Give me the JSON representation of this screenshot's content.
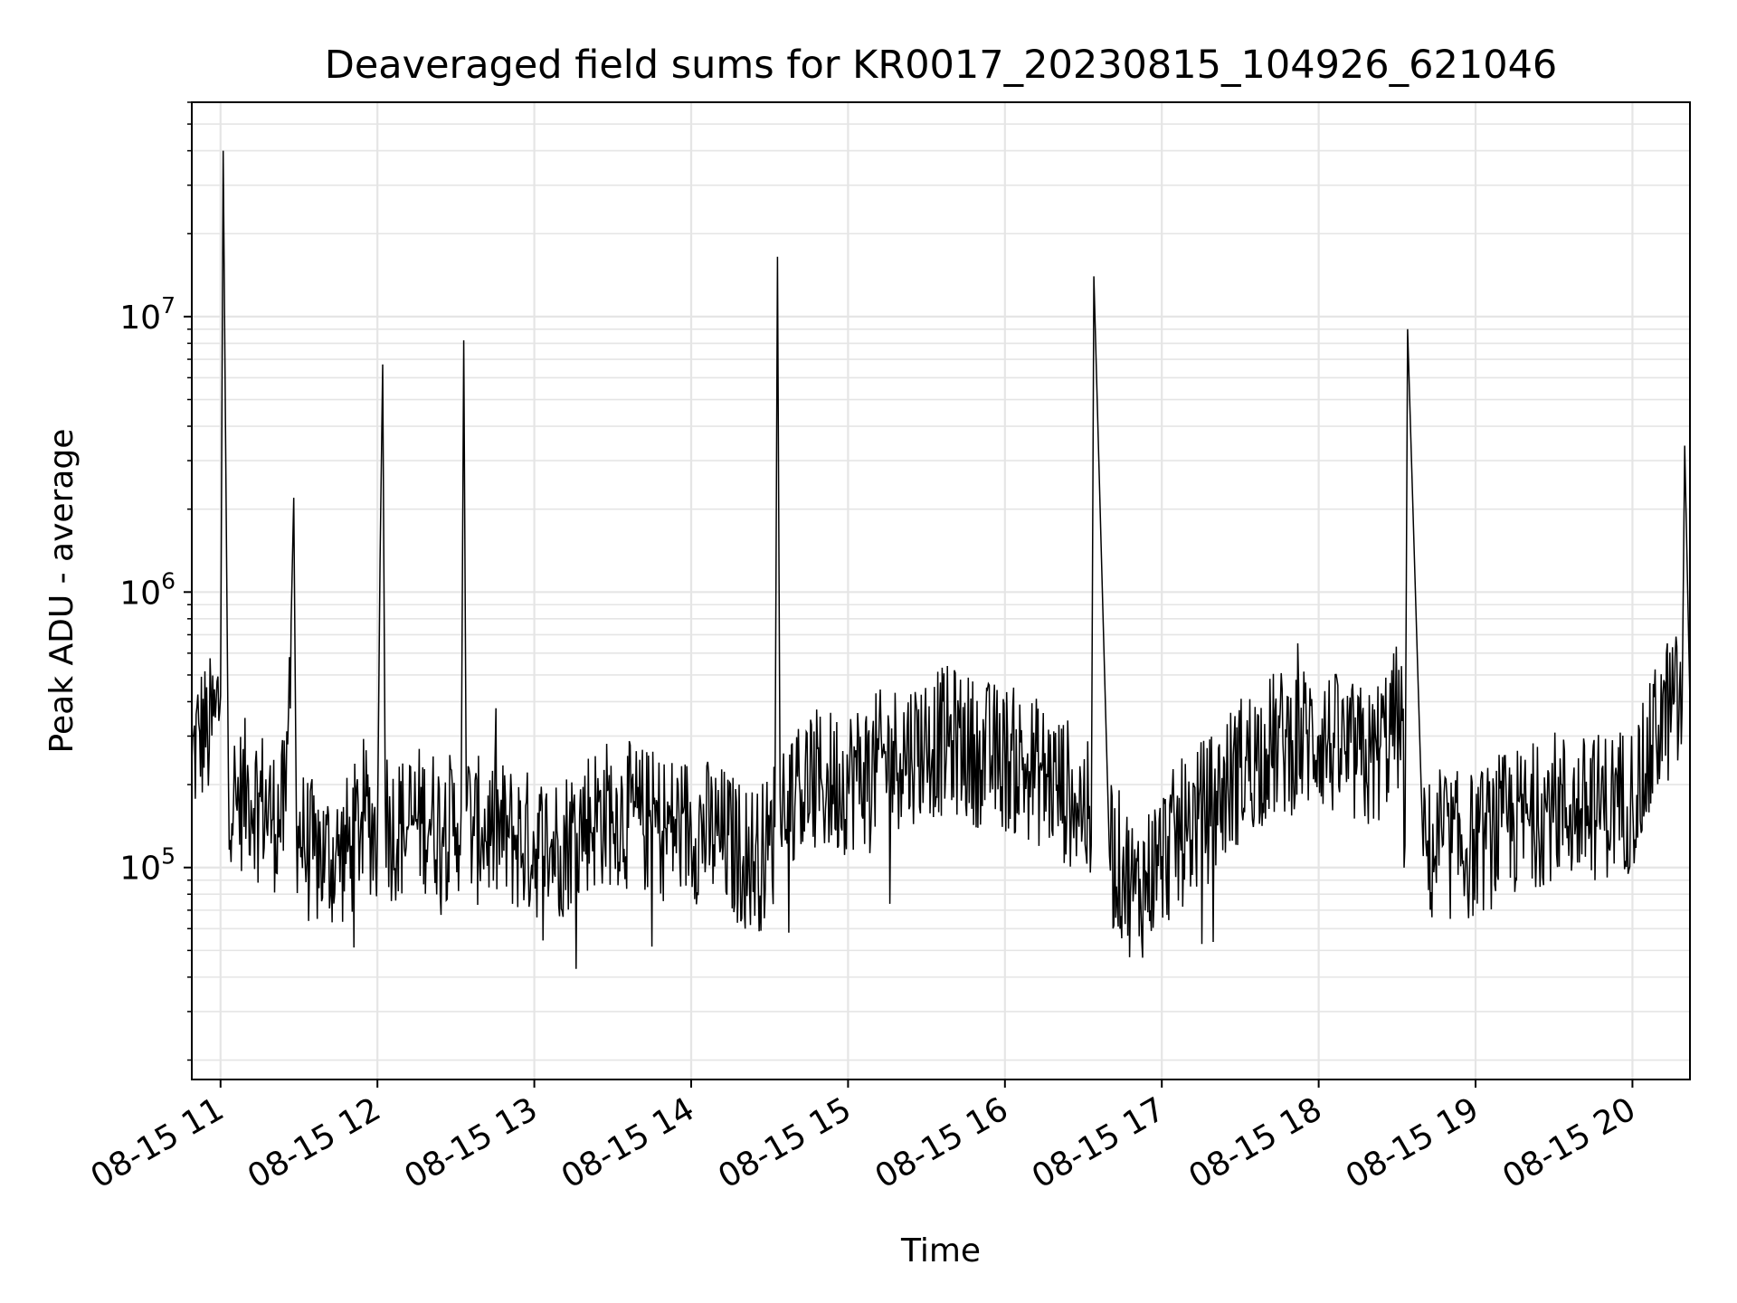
{
  "chart_data": {
    "type": "line",
    "title": "Deaveraged field sums for KR0017_20230815_104926_621046",
    "xlabel": "Time",
    "ylabel": "Peak ADU - average",
    "yscale": "log",
    "ylim": [
      17000,
      60000000
    ],
    "xlim": [
      "2023-08-15 10:49",
      "2023-08-15 20:22"
    ],
    "grid": true,
    "line_color": "#000000",
    "grid_color": "#e5e5e5",
    "x_ticks": [
      {
        "value": "2023-08-15 11:00",
        "label": "08-15 11"
      },
      {
        "value": "2023-08-15 12:00",
        "label": "08-15 12"
      },
      {
        "value": "2023-08-15 13:00",
        "label": "08-15 13"
      },
      {
        "value": "2023-08-15 14:00",
        "label": "08-15 14"
      },
      {
        "value": "2023-08-15 15:00",
        "label": "08-15 15"
      },
      {
        "value": "2023-08-15 16:00",
        "label": "08-15 16"
      },
      {
        "value": "2023-08-15 17:00",
        "label": "08-15 17"
      },
      {
        "value": "2023-08-15 18:00",
        "label": "08-15 18"
      },
      {
        "value": "2023-08-15 19:00",
        "label": "08-15 19"
      },
      {
        "value": "2023-08-15 20:00",
        "label": "08-15 20"
      }
    ],
    "y_ticks": [
      {
        "value": 100000,
        "base": "10",
        "exp": "5"
      },
      {
        "value": 1000000,
        "base": "10",
        "exp": "6"
      },
      {
        "value": 10000000,
        "base": "10",
        "exp": "7"
      }
    ],
    "series": [
      {
        "x": [
          "2023-08-15 10:49",
          "2023-08-15 10:52",
          "2023-08-15 10:55",
          "2023-08-15 10:58",
          "2023-08-15 11:00",
          "2023-08-15 11:01",
          "2023-08-15 11:03",
          "2023-08-15 11:06",
          "2023-08-15 11:10",
          "2023-08-15 11:15",
          "2023-08-15 11:20",
          "2023-08-15 11:25",
          "2023-08-15 11:27",
          "2023-08-15 11:28",
          "2023-08-15 11:29",
          "2023-08-15 11:32",
          "2023-08-15 11:36",
          "2023-08-15 11:40",
          "2023-08-15 11:45",
          "2023-08-15 11:50",
          "2023-08-15 11:55",
          "2023-08-15 12:00",
          "2023-08-15 12:01",
          "2023-08-15 12:02",
          "2023-08-15 12:03",
          "2023-08-15 12:05",
          "2023-08-15 12:10",
          "2023-08-15 12:15",
          "2023-08-15 12:20",
          "2023-08-15 12:25",
          "2023-08-15 12:30",
          "2023-08-15 12:32",
          "2023-08-15 12:33",
          "2023-08-15 12:34",
          "2023-08-15 12:37",
          "2023-08-15 12:40",
          "2023-08-15 12:50",
          "2023-08-15 13:00",
          "2023-08-15 13:10",
          "2023-08-15 13:20",
          "2023-08-15 13:30",
          "2023-08-15 13:40",
          "2023-08-15 13:50",
          "2023-08-15 14:00",
          "2023-08-15 14:10",
          "2023-08-15 14:20",
          "2023-08-15 14:27",
          "2023-08-15 14:30",
          "2023-08-15 14:32",
          "2023-08-15 14:33",
          "2023-08-15 14:34",
          "2023-08-15 14:37",
          "2023-08-15 14:40",
          "2023-08-15 14:50",
          "2023-08-15 15:00",
          "2023-08-15 15:10",
          "2023-08-15 15:20",
          "2023-08-15 15:30",
          "2023-08-15 15:40",
          "2023-08-15 15:50",
          "2023-08-15 16:00",
          "2023-08-15 16:10",
          "2023-08-15 16:20",
          "2023-08-15 16:30",
          "2023-08-15 16:32",
          "2023-08-15 16:33",
          "2023-08-15 16:34",
          "2023-08-15 16:40",
          "2023-08-15 16:45",
          "2023-08-15 16:50",
          "2023-08-15 17:00",
          "2023-08-15 17:10",
          "2023-08-15 17:20",
          "2023-08-15 17:30",
          "2023-08-15 17:40",
          "2023-08-15 17:50",
          "2023-08-15 18:00",
          "2023-08-15 18:10",
          "2023-08-15 18:20",
          "2023-08-15 18:30",
          "2023-08-15 18:32",
          "2023-08-15 18:33",
          "2023-08-15 18:34",
          "2023-08-15 18:40",
          "2023-08-15 18:50",
          "2023-08-15 19:00",
          "2023-08-15 19:10",
          "2023-08-15 19:20",
          "2023-08-15 19:30",
          "2023-08-15 19:40",
          "2023-08-15 19:50",
          "2023-08-15 20:00",
          "2023-08-15 20:05",
          "2023-08-15 20:10",
          "2023-08-15 20:15",
          "2023-08-15 20:19",
          "2023-08-15 20:20",
          "2023-08-15 20:22"
        ],
        "y": [
          240000,
          310000,
          300000,
          350000,
          420000,
          40000000,
          210000,
          170000,
          190000,
          180000,
          150000,
          160000,
          780000,
          2200000,
          150000,
          120000,
          110000,
          110000,
          110000,
          120000,
          160000,
          130000,
          1300000,
          6700000,
          170000,
          140000,
          140000,
          150000,
          150000,
          140000,
          140000,
          160000,
          8200000,
          160000,
          130000,
          140000,
          130000,
          120000,
          120000,
          150000,
          160000,
          150000,
          140000,
          140000,
          130000,
          110000,
          110000,
          120000,
          140000,
          16500000,
          180000,
          190000,
          200000,
          200000,
          210000,
          230000,
          260000,
          280000,
          290000,
          260000,
          250000,
          230000,
          200000,
          170000,
          150000,
          120000,
          14000000,
          110000,
          100000,
          80000,
          110000,
          140000,
          170000,
          230000,
          270000,
          290000,
          300000,
          260000,
          240000,
          350000,
          340000,
          120000,
          9000000,
          110000,
          120000,
          120000,
          140000,
          150000,
          170000,
          160000,
          170000,
          180000,
          220000,
          330000,
          390000,
          380000,
          3400000,
          400000
        ]
      }
    ]
  }
}
